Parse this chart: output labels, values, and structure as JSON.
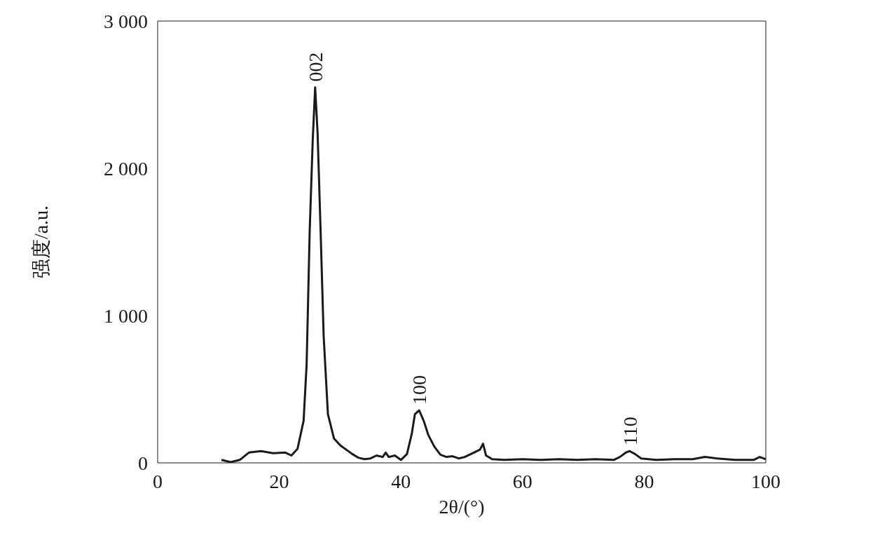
{
  "chart_data": {
    "type": "line",
    "xlabel": "2θ/(°)",
    "ylabel": "强度/a.u.",
    "xlim": [
      0,
      100
    ],
    "xticks": [
      0,
      20,
      40,
      60,
      80,
      100
    ],
    "ylim": [
      0,
      3000
    ],
    "yticks": [
      0,
      {
        "value": 1000,
        "label": "1 000"
      },
      {
        "value": 2000,
        "label": "2 000"
      },
      {
        "value": 3000,
        "label": "3 000"
      }
    ],
    "marker": "none",
    "line_style": "solid",
    "annotations": [
      {
        "text": "002",
        "x": 25.9,
        "y": 2550
      },
      {
        "text": "100",
        "x": 43,
        "y": 357
      },
      {
        "text": "110",
        "x": 77.6,
        "y": 80
      }
    ],
    "series": [
      {
        "color": "#1a1a1a",
        "x": [
          10.5,
          12,
          13.5,
          15,
          17,
          19,
          21,
          22,
          23,
          24,
          24.5,
          25,
          25.5,
          25.9,
          26.3,
          26.8,
          27.3,
          28,
          29,
          30,
          31,
          32,
          33,
          34,
          35,
          36,
          37,
          37.5,
          38,
          39,
          40,
          41,
          41.8,
          42.3,
          43,
          43.8,
          44.5,
          45.5,
          46.5,
          47.5,
          48.5,
          49.5,
          50.5,
          52,
          53,
          53.5,
          54,
          55,
          57,
          60,
          63,
          66,
          69,
          72,
          75,
          76,
          77,
          77.6,
          78.5,
          79.5,
          82,
          85,
          88,
          90,
          92,
          95,
          98,
          99,
          100
        ],
        "values": [
          20,
          5,
          20,
          70,
          80,
          65,
          70,
          50,
          95,
          285,
          670,
          1570,
          2190,
          2550,
          2240,
          1570,
          860,
          330,
          165,
          120,
          90,
          60,
          35,
          25,
          30,
          50,
          40,
          70,
          40,
          50,
          20,
          60,
          200,
          330,
          357,
          280,
          190,
          110,
          55,
          40,
          45,
          30,
          40,
          70,
          90,
          130,
          50,
          25,
          20,
          25,
          20,
          25,
          20,
          25,
          20,
          40,
          70,
          80,
          60,
          30,
          20,
          25,
          25,
          40,
          30,
          20,
          20,
          40,
          25
        ]
      }
    ]
  }
}
